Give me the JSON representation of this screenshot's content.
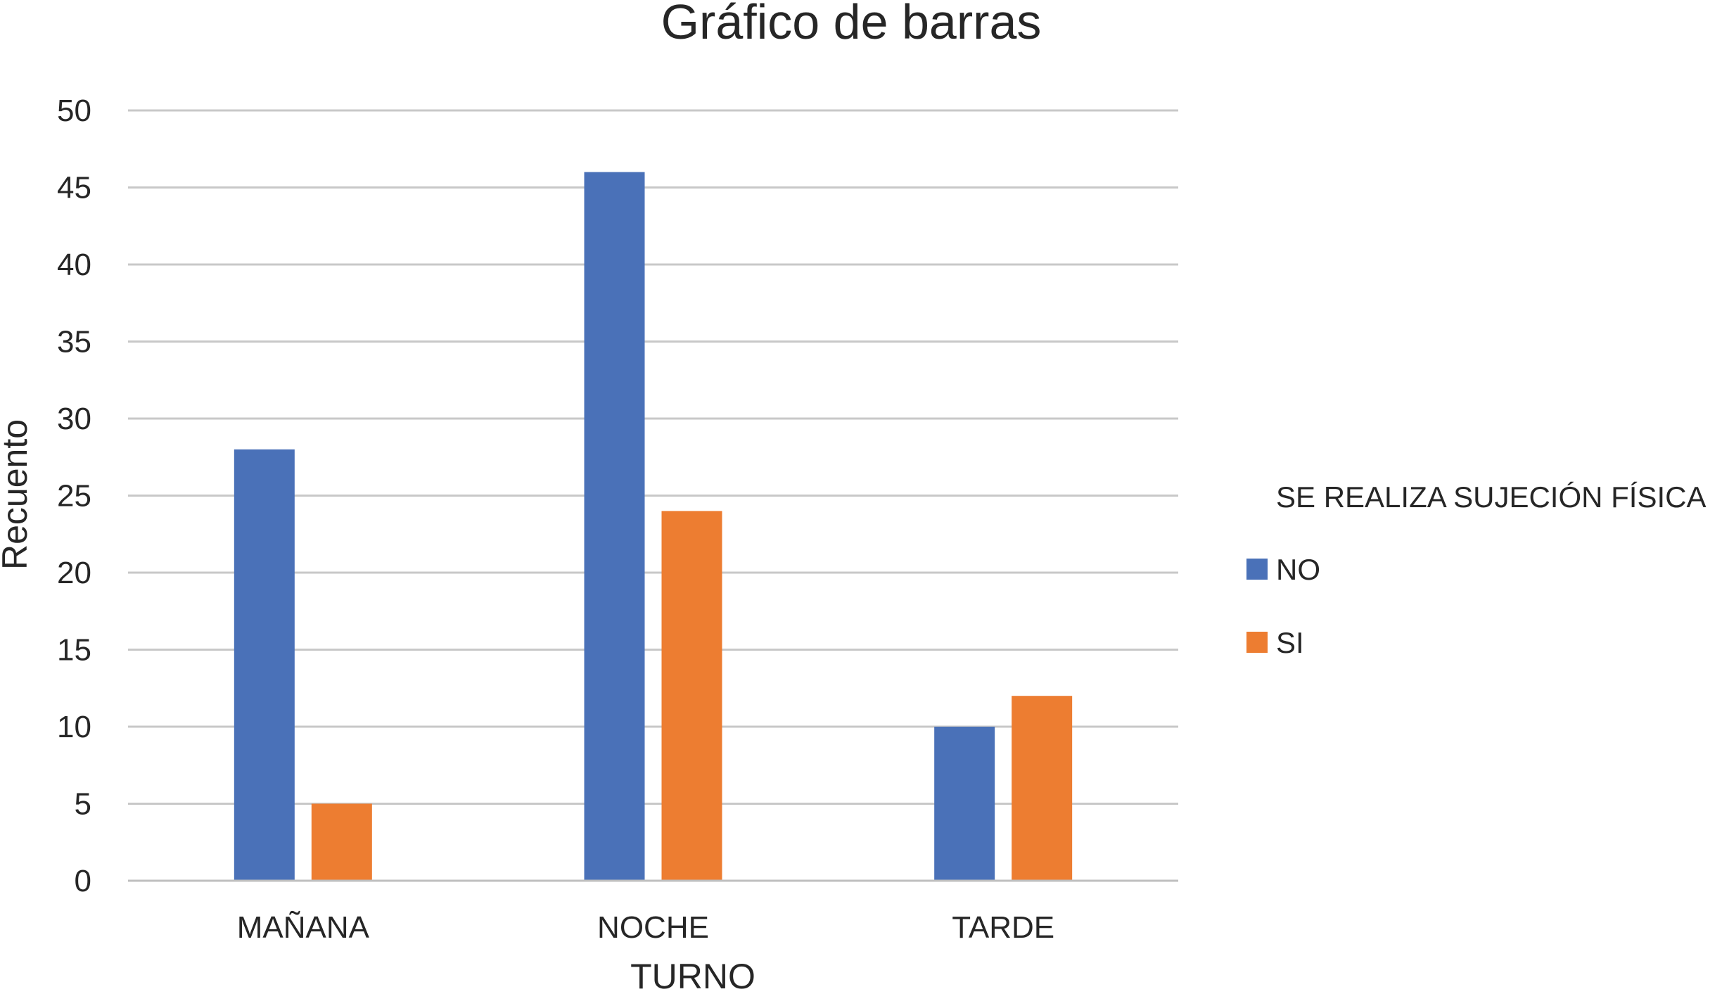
{
  "chart_data": {
    "type": "bar",
    "title": "Gráfico de barras",
    "xlabel": "TURNO",
    "ylabel": "Recuento",
    "categories": [
      "MAÑANA",
      "NOCHE",
      "TARDE"
    ],
    "series": [
      {
        "name": "NO",
        "values": [
          28,
          46,
          10
        ],
        "color": "#4a71b8"
      },
      {
        "name": "SI",
        "values": [
          5,
          24,
          12
        ],
        "color": "#ed7d31"
      }
    ],
    "ylim": [
      0,
      50
    ],
    "yticks": [
      0,
      5,
      10,
      15,
      20,
      25,
      30,
      35,
      40,
      45,
      50
    ],
    "grid": true,
    "legend": {
      "title": "SE REALIZA SUJECIÓN FÍSICA",
      "placement": "right"
    }
  }
}
